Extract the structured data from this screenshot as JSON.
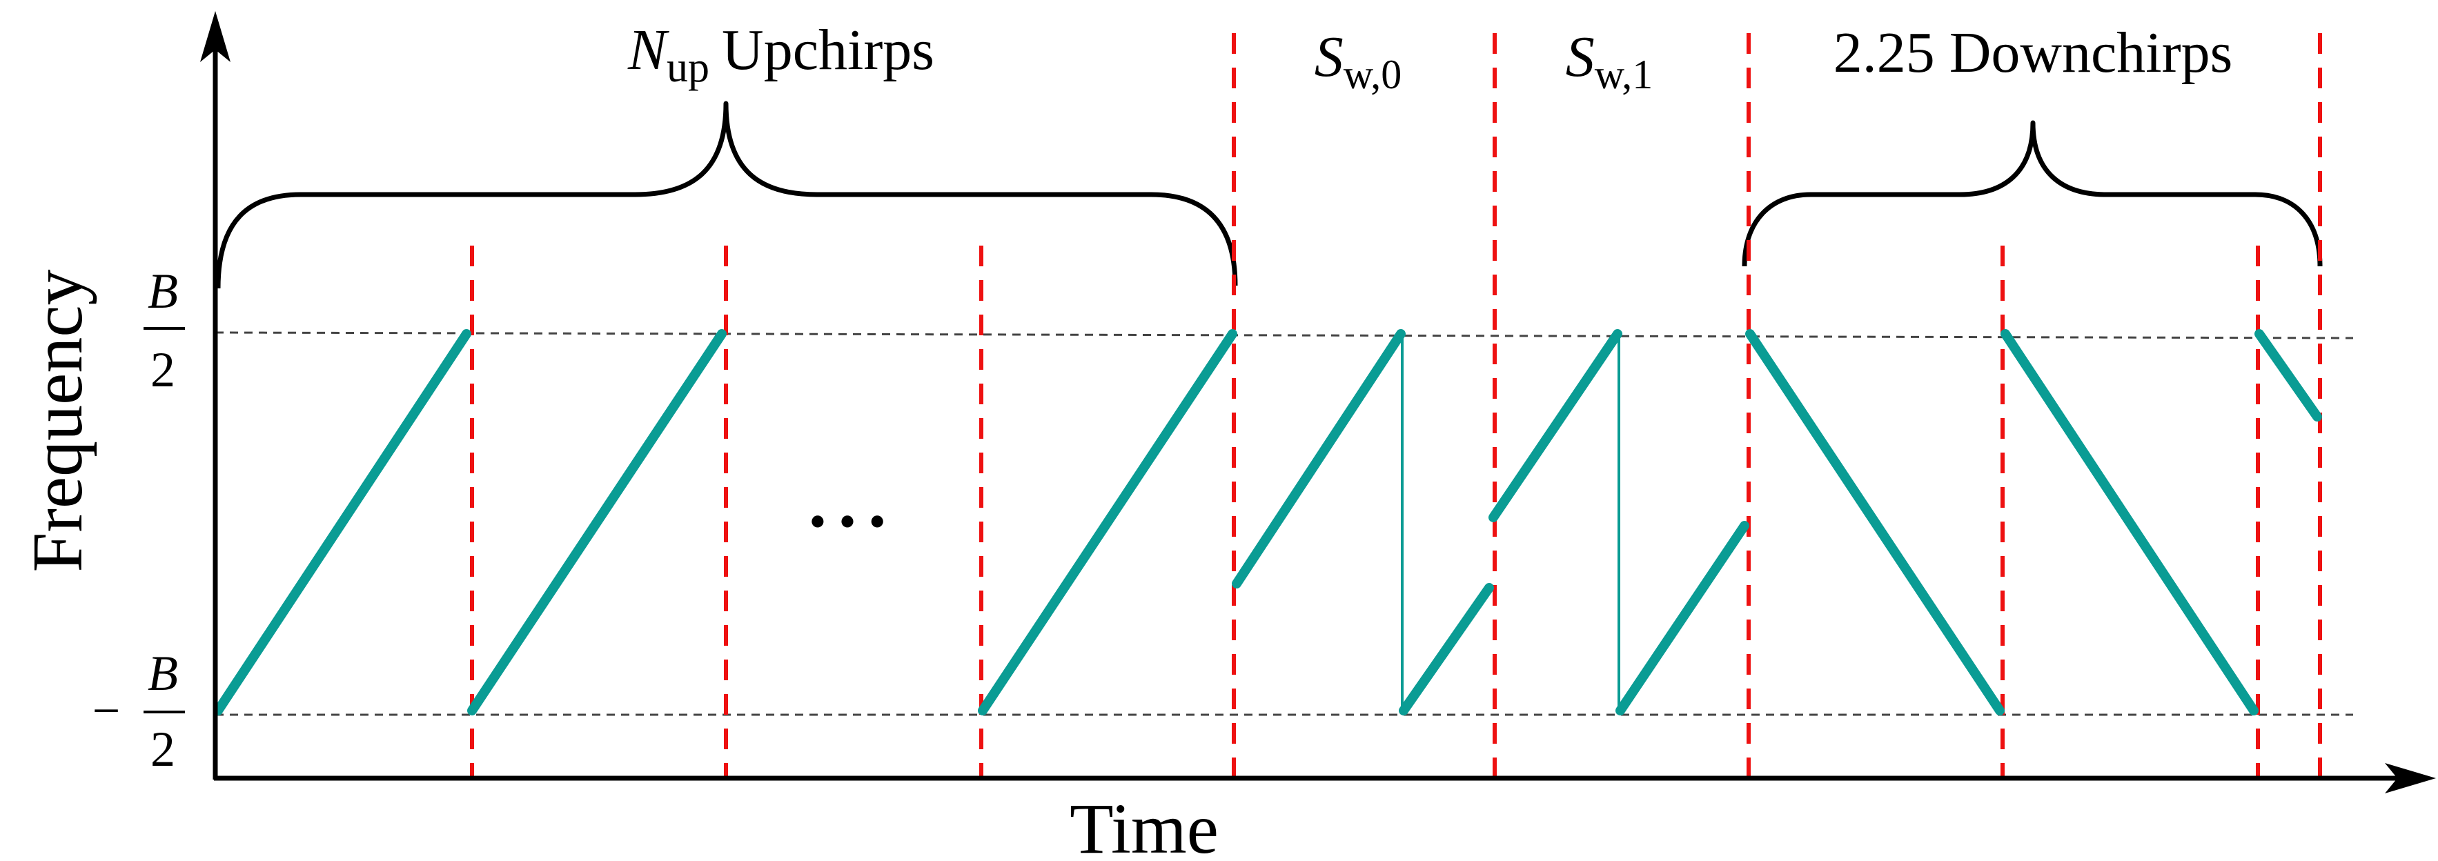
{
  "axes": {
    "x_label": "Time",
    "y_label": "Frequency",
    "y_tick_top": {
      "numerator": "B",
      "denominator": "2",
      "sign": ""
    },
    "y_tick_bottom": {
      "numerator": "B",
      "denominator": "2",
      "sign": "−"
    }
  },
  "labels": {
    "upchirps": {
      "symbol": "N",
      "subscript": "up",
      "text": "Upchirps"
    },
    "sync_word_0": {
      "symbol": "S",
      "subscript": "w,0"
    },
    "sync_word_1": {
      "symbol": "S",
      "subscript": "w,1"
    },
    "downchirps": "2.25 Downchirps"
  },
  "ellipsis": "• • •",
  "colors": {
    "chirp": "#0a9c94",
    "boundary": "#ee1111",
    "axis": "#000000",
    "reference_line": "#444444",
    "brace": "#000000"
  }
}
